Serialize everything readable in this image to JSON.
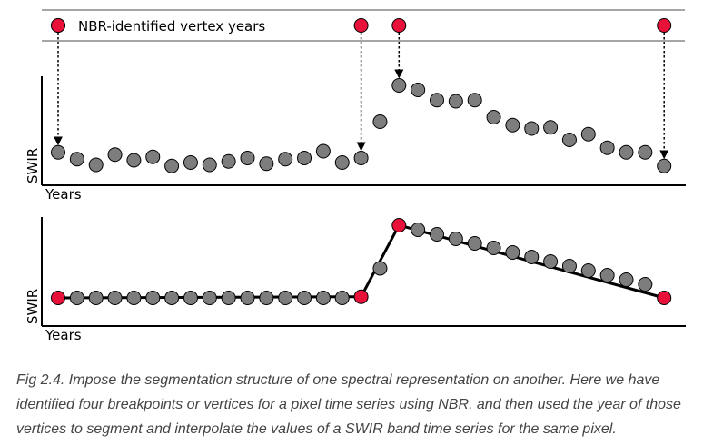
{
  "legend": {
    "text": "NBR-identified vertex years"
  },
  "top_panel": {
    "ylabel": "SWIR",
    "xlabel": "Years"
  },
  "bottom_panel": {
    "ylabel": "SWIR",
    "xlabel": "Years"
  },
  "colors": {
    "vertex": "#e8113a",
    "point": "#7d7d7d",
    "line": "#000000"
  },
  "chart_data": [
    {
      "type": "scatter",
      "name": "top_panel",
      "ylabel": "SWIR",
      "xlabel": "Years",
      "x": [
        1,
        2,
        3,
        4,
        5,
        6,
        7,
        8,
        9,
        10,
        11,
        12,
        13,
        14,
        15,
        16,
        17,
        18,
        19,
        20,
        21,
        22,
        23,
        24,
        25,
        26,
        27,
        28,
        29,
        30,
        31,
        32,
        33
      ],
      "values": [
        0.25,
        0.19,
        0.14,
        0.23,
        0.18,
        0.21,
        0.13,
        0.16,
        0.14,
        0.17,
        0.2,
        0.15,
        0.19,
        0.2,
        0.26,
        0.16,
        0.2,
        0.52,
        0.84,
        0.8,
        0.71,
        0.7,
        0.71,
        0.56,
        0.49,
        0.46,
        0.47,
        0.36,
        0.41,
        0.29,
        0.25,
        0.25,
        0.13
      ],
      "vertex_years": [
        1,
        17,
        19,
        33
      ]
    },
    {
      "type": "line",
      "name": "bottom_panel",
      "ylabel": "SWIR",
      "xlabel": "Years",
      "x": [
        1,
        2,
        3,
        4,
        5,
        6,
        7,
        8,
        9,
        10,
        11,
        12,
        13,
        14,
        15,
        16,
        17,
        18,
        19,
        20,
        21,
        22,
        23,
        24,
        25,
        26,
        27,
        28,
        29,
        30,
        31,
        32,
        33
      ],
      "values": [
        0.2,
        0.2,
        0.2,
        0.2,
        0.2,
        0.2,
        0.2,
        0.2,
        0.2,
        0.2,
        0.2,
        0.2,
        0.2,
        0.2,
        0.2,
        0.2,
        0.21,
        0.46,
        0.84,
        0.8,
        0.76,
        0.72,
        0.68,
        0.64,
        0.6,
        0.56,
        0.52,
        0.48,
        0.44,
        0.4,
        0.36,
        0.32,
        0.2
      ],
      "vertex_years": [
        1,
        17,
        19,
        33
      ]
    }
  ],
  "caption": "Fig 2.4. Impose the segmentation structure of one spectral representation on another. Here we have identified four breakpoints or vertices for a pixel time series using NBR, and then used the year of those vertices to segment and interpolate the values of a SWIR band time series for the same pixel."
}
